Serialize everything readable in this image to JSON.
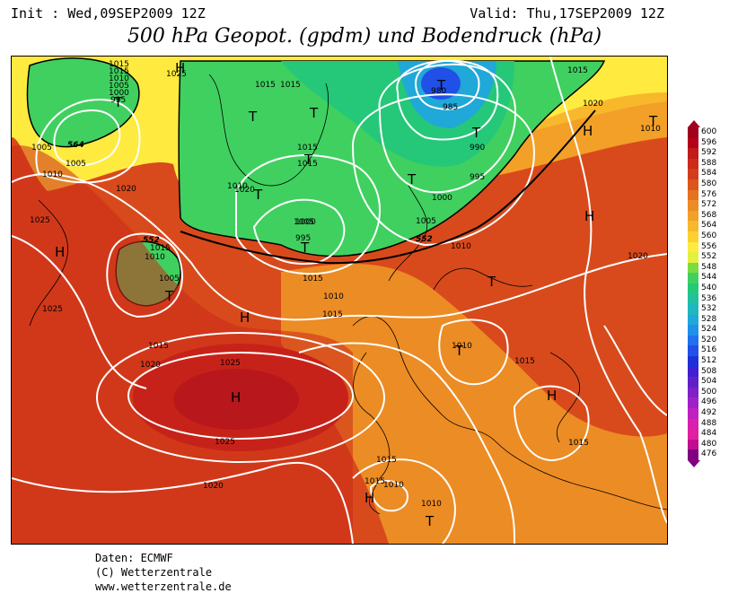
{
  "header": {
    "init": "Init : Wed,09SEP2009 12Z",
    "valid": "Valid: Thu,17SEP2009 12Z",
    "title": "500 hPa Geopot. (gpdm) und Bodendruck (hPa)"
  },
  "credits": {
    "line1": "Daten: ECMWF",
    "line2": "(C) Wetterzentrale",
    "line3": "www.wetterzentrale.de"
  },
  "legend": {
    "levels": [
      "600",
      "596",
      "592",
      "588",
      "584",
      "580",
      "576",
      "572",
      "568",
      "564",
      "560",
      "556",
      "552",
      "548",
      "544",
      "540",
      "536",
      "532",
      "528",
      "524",
      "520",
      "516",
      "512",
      "508",
      "504",
      "500",
      "496",
      "492",
      "488",
      "484",
      "480",
      "476"
    ],
    "colors": [
      "#a0001e",
      "#b4001a",
      "#c01a1a",
      "#cc2a1a",
      "#d23c1a",
      "#dc561c",
      "#e47220",
      "#ec8c24",
      "#f2a028",
      "#f8b82c",
      "#fcd030",
      "#ffea40",
      "#e4f040",
      "#7cdc40",
      "#40d060",
      "#24c878",
      "#20c0a0",
      "#20b8c0",
      "#20a8d8",
      "#2090e8",
      "#2070f0",
      "#2050e8",
      "#2030d8",
      "#4020d0",
      "#6020c8",
      "#8020c8",
      "#a020c8",
      "#c020c0",
      "#d820b0",
      "#e020a0",
      "#c01090",
      "#800080"
    ]
  },
  "map": {
    "isobar_labels": [
      "1015",
      "1015",
      "1010",
      "1005",
      "1000",
      "995",
      "1025",
      "1005",
      "1005",
      "1010",
      "1020",
      "1025",
      "1015",
      "1010",
      "1005",
      "1025",
      "1015",
      "1020",
      "1025",
      "1025",
      "1020",
      "1015",
      "1015",
      "1010",
      "1005",
      "1000",
      "995",
      "1020",
      "1015",
      "1015",
      "1015",
      "1015",
      "1010",
      "1005",
      "1000",
      "990",
      "995",
      "985",
      "980",
      "1015",
      "1020",
      "1010",
      "1010",
      "1010",
      "1020",
      "1015",
      "1015",
      "1010",
      "1010",
      "1015",
      "1015"
    ],
    "contour_labels": [
      "564",
      "552",
      "552"
    ],
    "highs": [
      "H",
      "H",
      "H",
      "H",
      "H",
      "H",
      "H",
      "H"
    ],
    "lows": [
      "T",
      "T",
      "T",
      "T",
      "T",
      "T",
      "T",
      "T",
      "T",
      "T",
      "T",
      "T",
      "T",
      "T"
    ]
  }
}
